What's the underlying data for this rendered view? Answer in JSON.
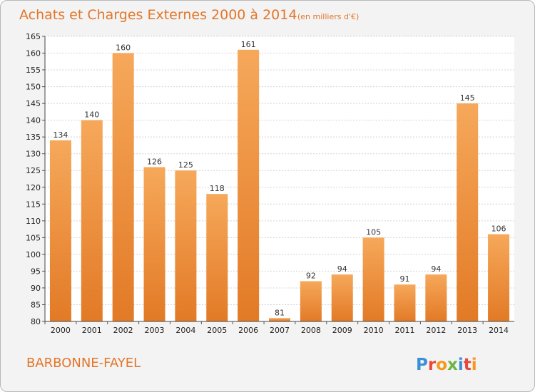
{
  "chart_data": {
    "type": "bar",
    "title": "Achats et Charges Externes 2000 à 2014",
    "unit_label": "(en milliers d'€)",
    "categories": [
      "2000",
      "2001",
      "2002",
      "2003",
      "2004",
      "2005",
      "2006",
      "2007",
      "2008",
      "2009",
      "2010",
      "2011",
      "2012",
      "2013",
      "2014"
    ],
    "values": [
      134,
      140,
      160,
      126,
      125,
      118,
      161,
      81,
      92,
      94,
      105,
      91,
      94,
      145,
      106
    ],
    "ylim": [
      80,
      165
    ],
    "yticks": [
      80,
      85,
      90,
      95,
      100,
      105,
      110,
      115,
      120,
      125,
      130,
      135,
      140,
      145,
      150,
      155,
      160,
      165
    ],
    "grid": true,
    "bar_color": "#f0913f"
  },
  "footer": {
    "commune": "BARBONNE-FAYEL",
    "brand": "Proxiti"
  },
  "colors": {
    "title": "#e3762a",
    "bar_light": "#f6a85a",
    "bar_dark": "#e27a26",
    "background": "#f3f3f3",
    "plot_background": "#ffffff",
    "logo_letters": [
      "#3a8fd6",
      "#e8483a",
      "#f39a1e",
      "#6cb33f",
      "#3a8fd6",
      "#e8483a",
      "#f39a1e"
    ]
  }
}
